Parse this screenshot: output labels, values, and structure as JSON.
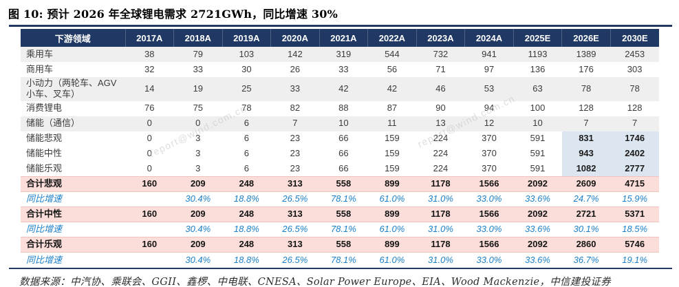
{
  "title": "图 10: 预计 2026 年全球锂电需求 2721GWh，同比增速 30%",
  "watermark": "report@wind.com.cn",
  "footer": {
    "prefix": "数据来源：中汽协、乘联会、GGII、鑫椤、中电联、CNESA、Solar Power Europe、EIA、Wood Mackenzie，",
    "link": "中信建投证券"
  },
  "colors": {
    "header_bg": "#1F3864",
    "stripe_bg": "#EFEFEF",
    "total_row_bg": "#FBDEDA",
    "storage_highlight_bg": "#DCE6F0",
    "growth_text": "#1C7FC9",
    "source_underline": "#00AEC7",
    "rule": "#1F3864"
  },
  "chart_data": {
    "type": "table",
    "title": "预计 2026 年全球锂电需求 2721GWh，同比增速 30%",
    "columns": [
      "下游领域",
      "2017A",
      "2018A",
      "2019A",
      "2020A",
      "2021A",
      "2022A",
      "2023A",
      "2024A",
      "2025E",
      "2026E",
      "2030E"
    ],
    "highlight_columns": [
      "2026E",
      "2030E"
    ],
    "rows": [
      {
        "label": "乘用车",
        "type": "data",
        "shade": true,
        "values": [
          "38",
          "79",
          "103",
          "142",
          "319",
          "544",
          "732",
          "941",
          "1193",
          "1389",
          "2453"
        ]
      },
      {
        "label": "商用车",
        "type": "data",
        "shade": false,
        "values": [
          "32",
          "33",
          "30",
          "26",
          "33",
          "56",
          "71",
          "97",
          "136",
          "176",
          "303"
        ]
      },
      {
        "label": "小动力（两轮车、AGV小车、叉车）",
        "type": "data",
        "shade": true,
        "values": [
          "14",
          "19",
          "25",
          "33",
          "42",
          "42",
          "46",
          "53",
          "63",
          "78",
          "78"
        ]
      },
      {
        "label": "消费锂电",
        "type": "data",
        "shade": false,
        "values": [
          "76",
          "75",
          "78",
          "82",
          "88",
          "87",
          "90",
          "94",
          "100",
          "128",
          "128"
        ]
      },
      {
        "label": "储能（通信）",
        "type": "data",
        "shade": true,
        "values": [
          "0",
          "0",
          "6",
          "7",
          "10",
          "11",
          "13",
          "12",
          "10",
          "7",
          "7"
        ]
      },
      {
        "label": "储能悲观",
        "type": "storage",
        "shade": false,
        "values": [
          "0",
          "3",
          "6",
          "23",
          "66",
          "159",
          "224",
          "370",
          "591",
          "831",
          "1746"
        ]
      },
      {
        "label": "储能中性",
        "type": "storage",
        "shade": false,
        "values": [
          "0",
          "3",
          "6",
          "23",
          "66",
          "159",
          "224",
          "370",
          "591",
          "943",
          "2402"
        ]
      },
      {
        "label": "储能乐观",
        "type": "storage",
        "shade": false,
        "values": [
          "0",
          "3",
          "6",
          "23",
          "66",
          "159",
          "224",
          "370",
          "591",
          "1082",
          "2777"
        ]
      },
      {
        "label": "合计悲观",
        "type": "total",
        "shade": false,
        "values": [
          "160",
          "209",
          "248",
          "313",
          "558",
          "899",
          "1178",
          "1566",
          "2092",
          "2609",
          "4715"
        ]
      },
      {
        "label": "同比增速",
        "type": "growth",
        "shade": false,
        "values": [
          "",
          "30.4%",
          "18.8%",
          "26.5%",
          "78.1%",
          "61.0%",
          "31.0%",
          "33.0%",
          "33.6%",
          "24.7%",
          "15.9%"
        ]
      },
      {
        "label": "合计中性",
        "type": "total",
        "shade": false,
        "values": [
          "160",
          "209",
          "248",
          "313",
          "558",
          "899",
          "1178",
          "1566",
          "2092",
          "2721",
          "5371"
        ]
      },
      {
        "label": "同比增速",
        "type": "growth",
        "shade": false,
        "values": [
          "",
          "30.4%",
          "18.8%",
          "26.5%",
          "78.1%",
          "61.0%",
          "31.0%",
          "33.0%",
          "33.6%",
          "30.1%",
          "18.5%"
        ]
      },
      {
        "label": "合计乐观",
        "type": "total",
        "shade": false,
        "values": [
          "160",
          "209",
          "248",
          "313",
          "558",
          "899",
          "1178",
          "1566",
          "2092",
          "2860",
          "5746"
        ]
      },
      {
        "label": "同比增速",
        "type": "growth",
        "shade": false,
        "values": [
          "",
          "30.4%",
          "18.8%",
          "26.5%",
          "78.1%",
          "61.0%",
          "31.0%",
          "33.0%",
          "33.6%",
          "36.7%",
          "19.1%"
        ]
      }
    ]
  }
}
